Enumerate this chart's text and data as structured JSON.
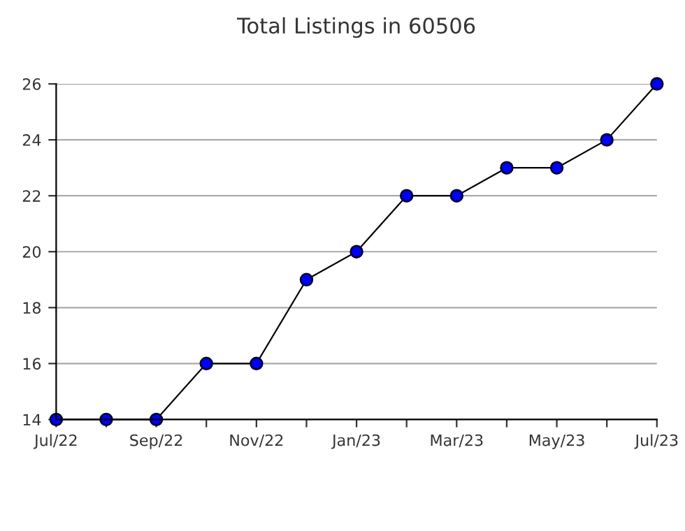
{
  "chart_data": {
    "type": "line",
    "title": "Total Listings in 60506",
    "categories": [
      "Jul/22",
      null,
      "Sep/22",
      null,
      "Nov/22",
      null,
      "Jan/23",
      null,
      "Mar/23",
      null,
      "May/23",
      null,
      "Jul/23"
    ],
    "series": [
      {
        "color": "#0000ff",
        "values": [
          14,
          14,
          14,
          16,
          16,
          19,
          20,
          22,
          22,
          23,
          23,
          24,
          26
        ]
      }
    ],
    "ylim": [
      14,
      26
    ],
    "yticks": [
      14,
      16,
      18,
      20,
      22,
      24,
      26
    ],
    "grid": "y",
    "marker": "circle",
    "line_style": "solid",
    "legend": false
  }
}
